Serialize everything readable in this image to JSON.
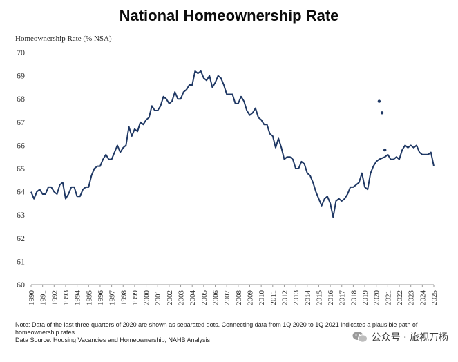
{
  "chart_data": {
    "type": "line",
    "title": "National Homeownership Rate",
    "ylabel": "Homeownership Rate (% NSA)",
    "xlabel": "",
    "ylim": [
      60,
      70
    ],
    "yticks": [
      60,
      61,
      62,
      63,
      64,
      65,
      66,
      67,
      68,
      69,
      70
    ],
    "xlim": [
      1990,
      2025
    ],
    "xticks": [
      "1990",
      "1991",
      "1992",
      "1993",
      "1994",
      "1995",
      "1996",
      "1997",
      "1998",
      "1999",
      "2000",
      "2001",
      "2002",
      "2003",
      "2004",
      "2005",
      "2006",
      "2007",
      "2008",
      "2009",
      "2010",
      "2011",
      "2012",
      "2013",
      "2014",
      "2015",
      "2016",
      "2017",
      "2018",
      "2019",
      "2020",
      "2021",
      "2022",
      "2023",
      "2024",
      "2025"
    ],
    "grid": false,
    "legend": "none",
    "color": "#1f3864",
    "series": [
      {
        "x": [
          1990,
          1990.25,
          1990.5,
          1990.75,
          1991,
          1991.25,
          1991.5,
          1991.75,
          1992,
          1992.25,
          1992.5,
          1992.75,
          1993,
          1993.25,
          1993.5,
          1993.75,
          1994,
          1994.25,
          1994.5,
          1994.75,
          1995,
          1995.25,
          1995.5,
          1995.75,
          1996,
          1996.25,
          1996.5,
          1996.75,
          1997,
          1997.25,
          1997.5,
          1997.75,
          1998,
          1998.25,
          1998.5,
          1998.75,
          1999,
          1999.25,
          1999.5,
          1999.75,
          2000,
          2000.25,
          2000.5,
          2000.75,
          2001,
          2001.25,
          2001.5,
          2001.75,
          2002,
          2002.25,
          2002.5,
          2002.75,
          2003,
          2003.25,
          2003.5,
          2003.75,
          2004,
          2004.25,
          2004.5,
          2004.75,
          2005,
          2005.25,
          2005.5,
          2005.75,
          2006,
          2006.25,
          2006.5,
          2006.75,
          2007,
          2007.25,
          2007.5,
          2007.75,
          2008,
          2008.25,
          2008.5,
          2008.75,
          2009,
          2009.25,
          2009.5,
          2009.75,
          2010,
          2010.25,
          2010.5,
          2010.75,
          2011,
          2011.25,
          2011.5,
          2011.75,
          2012,
          2012.25,
          2012.5,
          2012.75,
          2013,
          2013.25,
          2013.5,
          2013.75,
          2014,
          2014.25,
          2014.5,
          2014.75,
          2015,
          2015.25,
          2015.5,
          2015.75,
          2016,
          2016.25,
          2016.5,
          2016.75,
          2017,
          2017.25,
          2017.5,
          2017.75,
          2018,
          2018.25,
          2018.5,
          2018.75,
          2019,
          2019.25,
          2019.5,
          2019.75,
          2020,
          2020.25,
          2020.5,
          2020.75,
          2021,
          2021.25,
          2021.5,
          2021.75,
          2022,
          2022.25,
          2022.5,
          2022.75,
          2023,
          2023.25,
          2023.5,
          2023.75,
          2024,
          2024.25,
          2024.5,
          2024.75,
          2025
        ],
        "values": [
          64.0,
          63.7,
          64.0,
          64.1,
          63.9,
          63.9,
          64.2,
          64.2,
          64.0,
          63.9,
          64.3,
          64.4,
          63.7,
          63.9,
          64.2,
          64.2,
          63.8,
          63.8,
          64.1,
          64.2,
          64.2,
          64.7,
          65.0,
          65.1,
          65.1,
          65.4,
          65.6,
          65.4,
          65.4,
          65.7,
          66.0,
          65.7,
          65.9,
          66.0,
          66.8,
          66.4,
          66.7,
          66.6,
          67.0,
          66.9,
          67.1,
          67.2,
          67.7,
          67.5,
          67.5,
          67.7,
          68.1,
          68.0,
          67.8,
          67.9,
          68.3,
          68.0,
          68.0,
          68.3,
          68.4,
          68.6,
          68.6,
          69.2,
          69.1,
          69.2,
          68.9,
          68.8,
          69.0,
          68.5,
          68.7,
          69.0,
          68.9,
          68.6,
          68.2,
          68.2,
          68.2,
          67.8,
          67.8,
          68.1,
          67.9,
          67.5,
          67.3,
          67.4,
          67.6,
          67.2,
          67.1,
          66.9,
          66.9,
          66.5,
          66.4,
          65.9,
          66.3,
          65.9,
          65.4,
          65.5,
          65.5,
          65.4,
          65.0,
          65.0,
          65.3,
          65.2,
          64.8,
          64.7,
          64.4,
          64.0,
          63.7,
          63.4,
          63.7,
          63.8,
          63.5,
          62.9,
          63.6,
          63.7,
          63.6,
          63.7,
          63.9,
          64.2,
          64.2,
          64.3,
          64.4,
          64.8,
          64.2,
          64.1,
          64.8,
          65.1,
          65.3,
          65.4,
          65.45,
          65.5,
          65.6,
          65.4,
          65.4,
          65.5,
          65.4,
          65.8,
          66.0,
          65.9,
          66.0,
          65.9,
          66.0,
          65.7,
          65.6,
          65.6,
          65.6,
          65.7,
          65.1
        ]
      }
    ],
    "separated_points": [
      {
        "x": 2020.25,
        "y": 67.9
      },
      {
        "x": 2020.5,
        "y": 67.4
      },
      {
        "x": 2020.75,
        "y": 65.8
      }
    ]
  },
  "notes": {
    "line1": "Note: Data of the last three quarters of 2020 are shown as separated dots. Connecting data from 1Q 2020 to 1Q 2021 indicates a plausible path of",
    "line2": "homeownership rates.",
    "line3": "Data Source: Housing Vacancies and Homeownership, NAHB Analysis"
  },
  "watermark": {
    "text": "公众号 · 旅视万杨",
    "icon": "wechat-icon"
  }
}
